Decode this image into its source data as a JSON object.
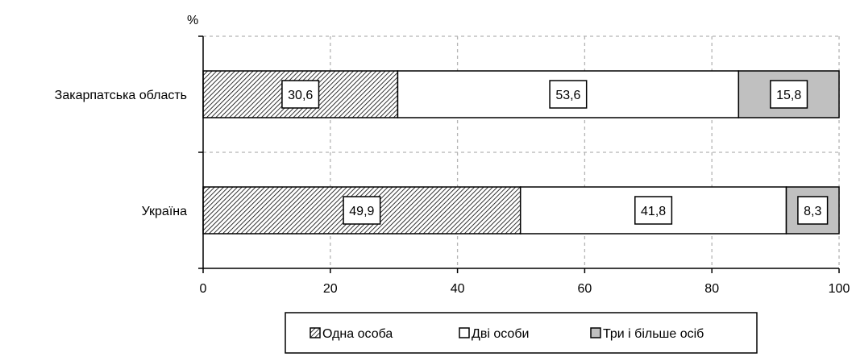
{
  "chart_data": {
    "type": "bar",
    "orientation": "horizontal",
    "stacked": true,
    "unit_label": "%",
    "categories": [
      "Закарпатська область",
      "Україна"
    ],
    "series": [
      {
        "name": "Одна особа",
        "values": [
          30.6,
          49.9
        ],
        "labels": [
          "30,6",
          "49,9"
        ],
        "fill": "hatch",
        "color": "#ffffff"
      },
      {
        "name": "Дві особи",
        "values": [
          53.6,
          41.8
        ],
        "labels": [
          "53,6",
          "41,8"
        ],
        "fill": "solid",
        "color": "#ffffff"
      },
      {
        "name": "Три і більше осіб",
        "values": [
          15.8,
          8.3
        ],
        "labels": [
          "15,8",
          "8,3"
        ],
        "fill": "solid",
        "color": "#c0c0c0"
      }
    ],
    "xlim": [
      0,
      100
    ],
    "xticks": [
      0,
      20,
      40,
      60,
      80,
      100
    ],
    "grid": true,
    "legend_position": "bottom"
  }
}
